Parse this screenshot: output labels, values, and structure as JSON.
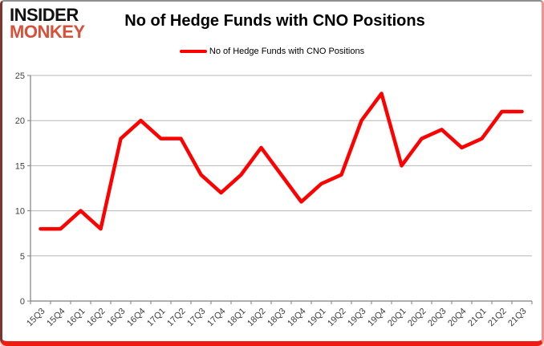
{
  "logo": {
    "line1": "INSIDER",
    "line2": "MONKEY"
  },
  "chart_data": {
    "type": "line",
    "title": "No of Hedge Funds with CNO Positions",
    "categories": [
      "15Q3",
      "15Q4",
      "16Q1",
      "16Q2",
      "16Q3",
      "16Q4",
      "17Q1",
      "17Q2",
      "17Q3",
      "17Q4",
      "18Q1",
      "18Q2",
      "18Q3",
      "18Q4",
      "19Q1",
      "19Q2",
      "19Q3",
      "19Q4",
      "20Q1",
      "20Q2",
      "20Q3",
      "20Q4",
      "21Q1",
      "21Q2",
      "21Q3"
    ],
    "series": [
      {
        "name": "No of Hedge Funds with CNO Positions",
        "values": [
          8,
          8,
          10,
          8,
          18,
          20,
          18,
          18,
          14,
          12,
          14,
          17,
          14,
          11,
          13,
          14,
          20,
          23,
          15,
          18,
          19,
          17,
          18,
          21,
          21
        ]
      }
    ],
    "xlabel": "",
    "ylabel": "",
    "ylim": [
      0,
      25
    ],
    "y_ticks": [
      0,
      5,
      10,
      15,
      20,
      25
    ],
    "grid": "horizontal",
    "legend_position": "top-center",
    "colors": {
      "line": "#ff0000",
      "grid": "#b7b7b7",
      "axis": "#808080",
      "tick_label": "#3f3f3f",
      "title": "#000000",
      "logo_insider": "#111111",
      "logo_monkey": "#d94f38",
      "border_bottom": "#ee1c12"
    }
  }
}
